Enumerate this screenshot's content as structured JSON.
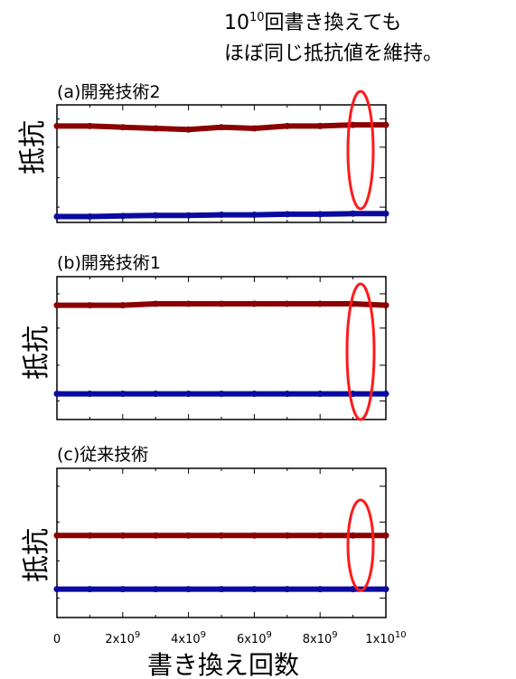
{
  "annotation": {
    "prefix": "10",
    "superscript": "10",
    "line1_rest": "回書き換えても",
    "line2": "ほぼ同じ抵抗値を維持。"
  },
  "colors": {
    "high_resistance": "#8b0000",
    "low_resistance": "#0a0aa0",
    "highlight_ellipse": "#ff1a1a"
  },
  "x_axis": {
    "label": "書き換え回数",
    "ticks": [
      {
        "value": 0,
        "base": "0",
        "exp": ""
      },
      {
        "value": 2000000000,
        "base": "2x10",
        "exp": "9"
      },
      {
        "value": 4000000000,
        "base": "4x10",
        "exp": "9"
      },
      {
        "value": 6000000000,
        "base": "6x10",
        "exp": "9"
      },
      {
        "value": 8000000000,
        "base": "8x10",
        "exp": "9"
      },
      {
        "value": 10000000000,
        "base": "1x10",
        "exp": "10"
      }
    ]
  },
  "chart_data": [
    {
      "type": "scatter",
      "title": "(a)開発技術2",
      "ylabel": "抵抗",
      "xlim": [
        0,
        10000000000
      ],
      "ylim": [
        0,
        1
      ],
      "series": [
        {
          "x": [
            0,
            1000000000,
            2000000000,
            3000000000,
            4000000000,
            5000000000,
            6000000000,
            7000000000,
            8000000000,
            9000000000,
            10000000000
          ],
          "values": [
            0.82,
            0.82,
            0.81,
            0.8,
            0.79,
            0.81,
            0.8,
            0.82,
            0.82,
            0.83,
            0.83
          ]
        },
        {
          "x": [
            0,
            1000000000,
            2000000000,
            3000000000,
            4000000000,
            5000000000,
            6000000000,
            7000000000,
            8000000000,
            9000000000,
            10000000000
          ],
          "values": [
            0.05,
            0.05,
            0.055,
            0.06,
            0.06,
            0.065,
            0.065,
            0.07,
            0.07,
            0.075,
            0.075
          ]
        }
      ]
    },
    {
      "type": "scatter",
      "title": "(b)開発技術1",
      "ylabel": "抵抗",
      "xlim": [
        0,
        10000000000
      ],
      "ylim": [
        0,
        1
      ],
      "series": [
        {
          "x": [
            0,
            1000000000,
            2000000000,
            3000000000,
            4000000000,
            5000000000,
            6000000000,
            7000000000,
            8000000000,
            9000000000,
            10000000000
          ],
          "values": [
            0.8,
            0.8,
            0.8,
            0.81,
            0.81,
            0.81,
            0.81,
            0.81,
            0.81,
            0.81,
            0.8
          ]
        },
        {
          "x": [
            0,
            1000000000,
            2000000000,
            3000000000,
            4000000000,
            5000000000,
            6000000000,
            7000000000,
            8000000000,
            9000000000,
            10000000000
          ],
          "values": [
            0.18,
            0.18,
            0.18,
            0.18,
            0.18,
            0.18,
            0.18,
            0.18,
            0.18,
            0.18,
            0.18
          ]
        }
      ]
    },
    {
      "type": "scatter",
      "title": "(c)従来技術",
      "ylabel": "抵抗",
      "xlim": [
        0,
        10000000000
      ],
      "ylim": [
        0,
        1
      ],
      "series": [
        {
          "x": [
            0,
            1000000000,
            2000000000,
            3000000000,
            4000000000,
            5000000000,
            6000000000,
            7000000000,
            8000000000,
            9000000000,
            10000000000
          ],
          "values": [
            0.55,
            0.55,
            0.55,
            0.55,
            0.55,
            0.55,
            0.55,
            0.55,
            0.55,
            0.55,
            0.55
          ]
        },
        {
          "x": [
            0,
            1000000000,
            2000000000,
            3000000000,
            4000000000,
            5000000000,
            6000000000,
            7000000000,
            8000000000,
            9000000000,
            10000000000
          ],
          "values": [
            0.19,
            0.19,
            0.19,
            0.19,
            0.19,
            0.19,
            0.19,
            0.19,
            0.19,
            0.19,
            0.19
          ]
        }
      ]
    }
  ]
}
